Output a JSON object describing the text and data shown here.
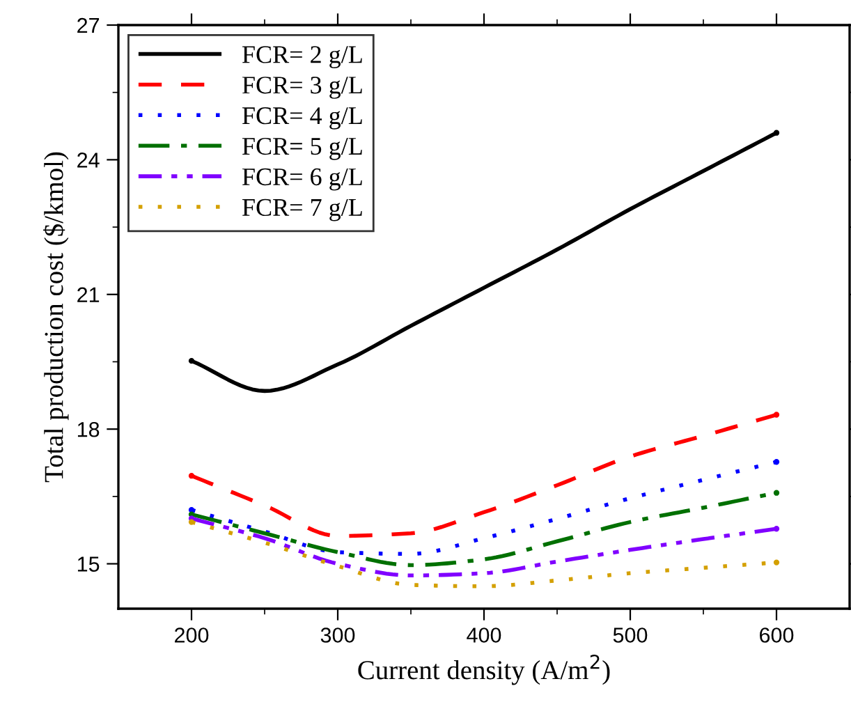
{
  "chart_data": {
    "type": "line",
    "xlabel": "Current density (A/m$^{2}$)",
    "ylabel": "Total production cost ($/kmol)",
    "x": [
      200,
      250,
      300,
      350,
      400,
      450,
      500,
      550,
      600
    ],
    "series": [
      {
        "name": "FCR= 2 g/L",
        "color": "#000000",
        "line_style": "solid",
        "values": [
          19.52,
          18.85,
          19.44,
          20.3,
          21.15,
          22.0,
          22.9,
          23.75,
          24.6
        ]
      },
      {
        "name": "FCR= 3 g/L",
        "color": "#ff0000",
        "line_style": "dashed",
        "values": [
          16.96,
          16.3,
          15.62,
          15.68,
          16.15,
          16.75,
          17.39,
          17.85,
          18.32
        ]
      },
      {
        "name": "FCR= 4 g/L",
        "color": "#0000ff",
        "line_style": "dotted",
        "values": [
          16.2,
          15.72,
          15.26,
          15.22,
          15.57,
          16.0,
          16.46,
          16.87,
          17.27
        ]
      },
      {
        "name": "FCR= 5 g/L",
        "color": "#007000",
        "line_style": "dashdot",
        "values": [
          16.1,
          15.68,
          15.26,
          14.97,
          15.1,
          15.5,
          15.93,
          16.25,
          16.58
        ]
      },
      {
        "name": "FCR= 6 g/L",
        "color": "#8000ff",
        "line_style": "dashdotdot",
        "values": [
          16.01,
          15.57,
          15.0,
          14.74,
          14.79,
          15.05,
          15.31,
          15.55,
          15.78
        ]
      },
      {
        "name": "FCR= 7 g/L",
        "color": "#d4a000",
        "line_style": "dotted",
        "values": [
          15.93,
          15.47,
          14.95,
          14.53,
          14.5,
          14.63,
          14.79,
          14.91,
          15.03
        ]
      }
    ],
    "xlim": [
      150,
      650
    ],
    "xticks": [
      200,
      300,
      400,
      500,
      600
    ],
    "ylim": [
      14,
      27
    ],
    "yticks": [
      15,
      18,
      21,
      24,
      27
    ],
    "grid": false,
    "legend": "top left",
    "marker": "none"
  }
}
